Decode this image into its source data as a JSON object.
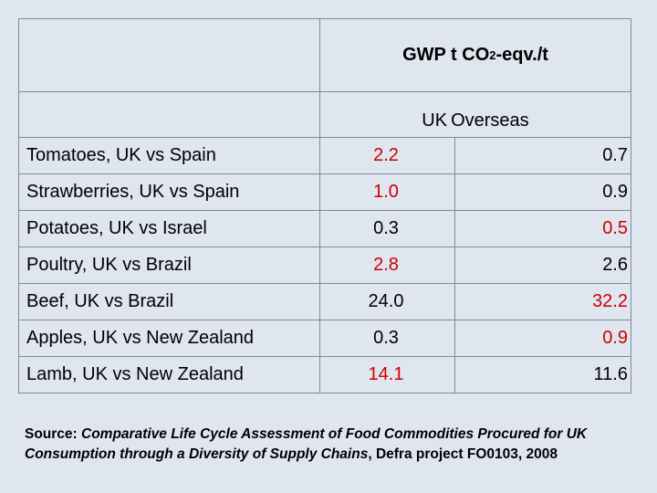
{
  "header": {
    "gwp_prefix": "GWP t CO",
    "gwp_sub": "2",
    "gwp_suffix": "-eqv./t",
    "col_uk": "UK",
    "col_overseas": "Overseas"
  },
  "colors": {
    "highlight": "#cc0000",
    "text": "#000000",
    "background": "#dfe6ef"
  },
  "rows": [
    {
      "label": "Tomatoes, UK vs Spain",
      "uk": "2.2",
      "overseas": "0.7",
      "uk_color": "red",
      "overseas_color": "black"
    },
    {
      "label": "Strawberries, UK vs Spain",
      "uk": "1.0",
      "overseas": "0.9",
      "uk_color": "red",
      "overseas_color": "black"
    },
    {
      "label": "Potatoes, UK vs Israel",
      "uk": "0.3",
      "overseas": "0.5",
      "uk_color": "black",
      "overseas_color": "red"
    },
    {
      "label": "Poultry, UK vs Brazil",
      "uk": "2.8",
      "overseas": "2.6",
      "uk_color": "red",
      "overseas_color": "black"
    },
    {
      "label": "Beef, UK vs Brazil",
      "uk": "24.0",
      "overseas": "32.2",
      "uk_color": "black",
      "overseas_color": "red"
    },
    {
      "label": "Apples, UK vs New Zealand",
      "uk": "0.3",
      "overseas": "0.9",
      "uk_color": "black",
      "overseas_color": "red"
    },
    {
      "label": "Lamb, UK vs New Zealand",
      "uk": "14.1",
      "overseas": "11.6",
      "uk_color": "red",
      "overseas_color": "black"
    }
  ],
  "source": {
    "prefix": "Source: ",
    "title": "Comparative Life Cycle Assessment of Food Commodities Procured for UK Consumption through a Diversity of Supply Chains",
    "suffix": ", Defra project FO0103, 2008"
  }
}
